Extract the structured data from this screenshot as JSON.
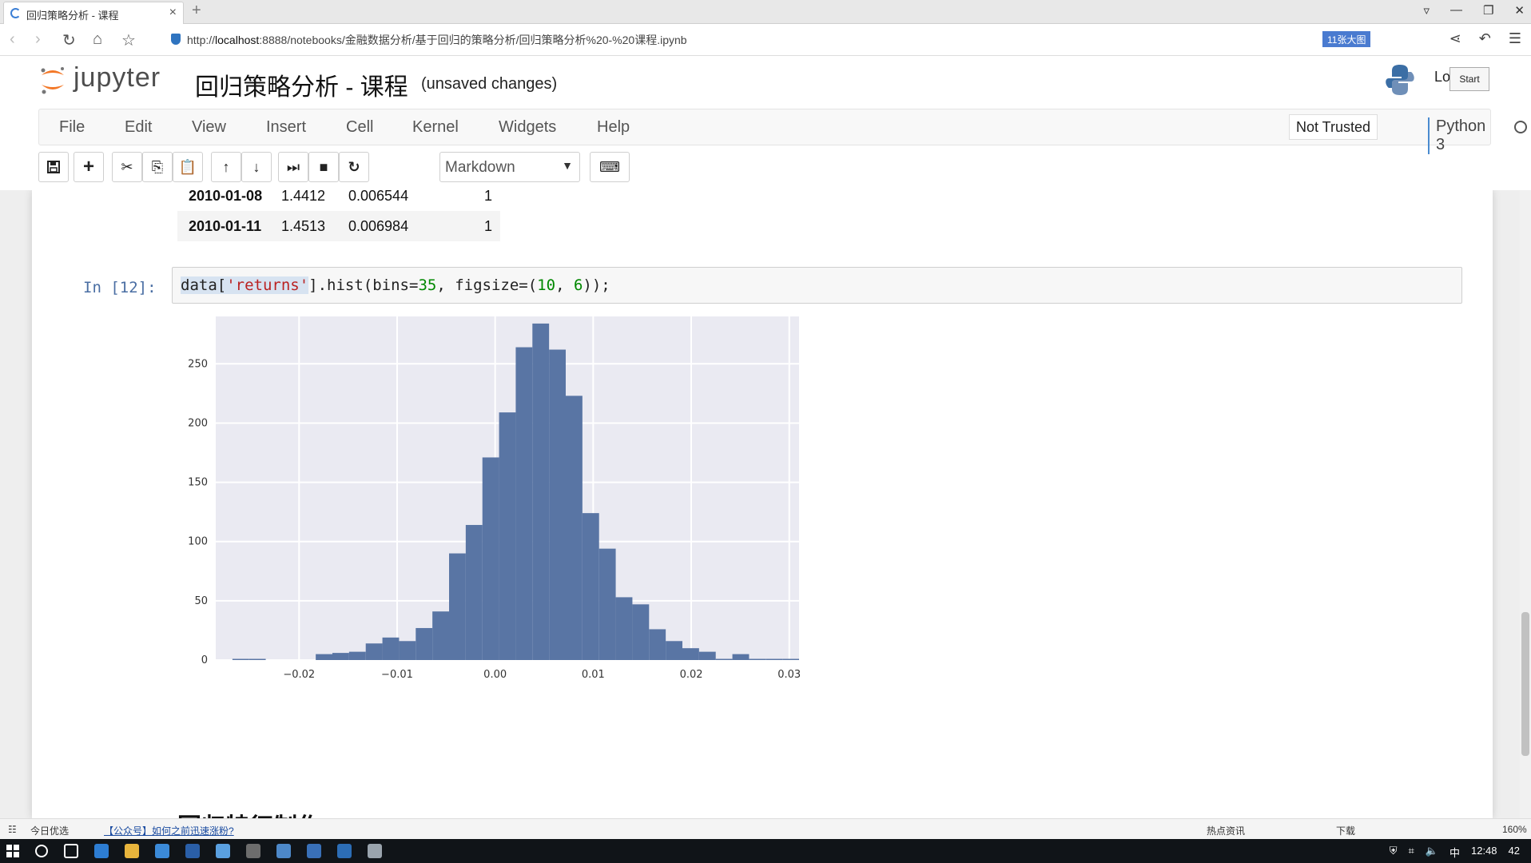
{
  "browser": {
    "tab_title": "回归策略分析 - 课程",
    "url_prefix": "http://",
    "url_host": "localhost",
    "url_rest": ":8888/notebooks/金融数据分析/基于回归的策略分析/回归策略分析%20-%20课程.ipynb",
    "extension_badge": "11张大图"
  },
  "jupyter": {
    "logo_text": "jupyter",
    "notebook_title": "回归策略分析 - 课程",
    "save_status": "(unsaved changes)",
    "logout_partial": "Lo",
    "start_label": "Start",
    "menu": [
      "File",
      "Edit",
      "View",
      "Insert",
      "Cell",
      "Kernel",
      "Widgets",
      "Help"
    ],
    "trusted_label": "Not Trusted",
    "kernel_name": "Python 3",
    "cell_type": "Markdown"
  },
  "dataframe_tail": [
    {
      "index": "2010-01-08",
      "price": "1.4412",
      "returns": "0.006544",
      "position": "1"
    },
    {
      "index": "2010-01-11",
      "price": "1.4513",
      "returns": "0.006984",
      "position": "1"
    }
  ],
  "cell": {
    "prompt": "In  [12]:",
    "code_a": "data[",
    "code_str": "'returns'",
    "code_b": "].hist(bins=",
    "code_n1": "35",
    "code_c": ", figsize=(",
    "code_n2": "10",
    "code_d": ", ",
    "code_n3": "6",
    "code_e": "));"
  },
  "chart_data": {
    "type": "bar",
    "title": "",
    "xlabel": "",
    "ylabel": "",
    "bins": 35,
    "x_range": [
      -0.0285,
      0.031
    ],
    "ylim": [
      0,
      290
    ],
    "x_ticks": [
      -0.02,
      -0.01,
      0.0,
      0.01,
      0.02,
      0.03
    ],
    "x_tick_labels": [
      "−0.02",
      "−0.01",
      "0.00",
      "0.01",
      "0.02",
      "0.03"
    ],
    "y_ticks": [
      0,
      50,
      100,
      150,
      200,
      250
    ],
    "y_tick_labels": [
      "0",
      "50",
      "100",
      "150",
      "200",
      "250"
    ],
    "bar_color": "#5975a4",
    "grid": true,
    "values": [
      0,
      1,
      1,
      0,
      0,
      0,
      5,
      6,
      7,
      14,
      19,
      16,
      27,
      41,
      90,
      114,
      171,
      209,
      264,
      284,
      262,
      223,
      124,
      94,
      53,
      47,
      26,
      16,
      10,
      7,
      1,
      5,
      1,
      1,
      1
    ]
  },
  "section_heading_peek": "回归特征制作",
  "statusbar": {
    "left1": "今日优选",
    "left2": "【公众号】如何之前迅速涨粉?",
    "right1": "热点资讯",
    "right2": "下载",
    "zoom": "160%"
  },
  "taskbar": {
    "ime": "中",
    "time": "12:48",
    "notif_count": "42"
  }
}
